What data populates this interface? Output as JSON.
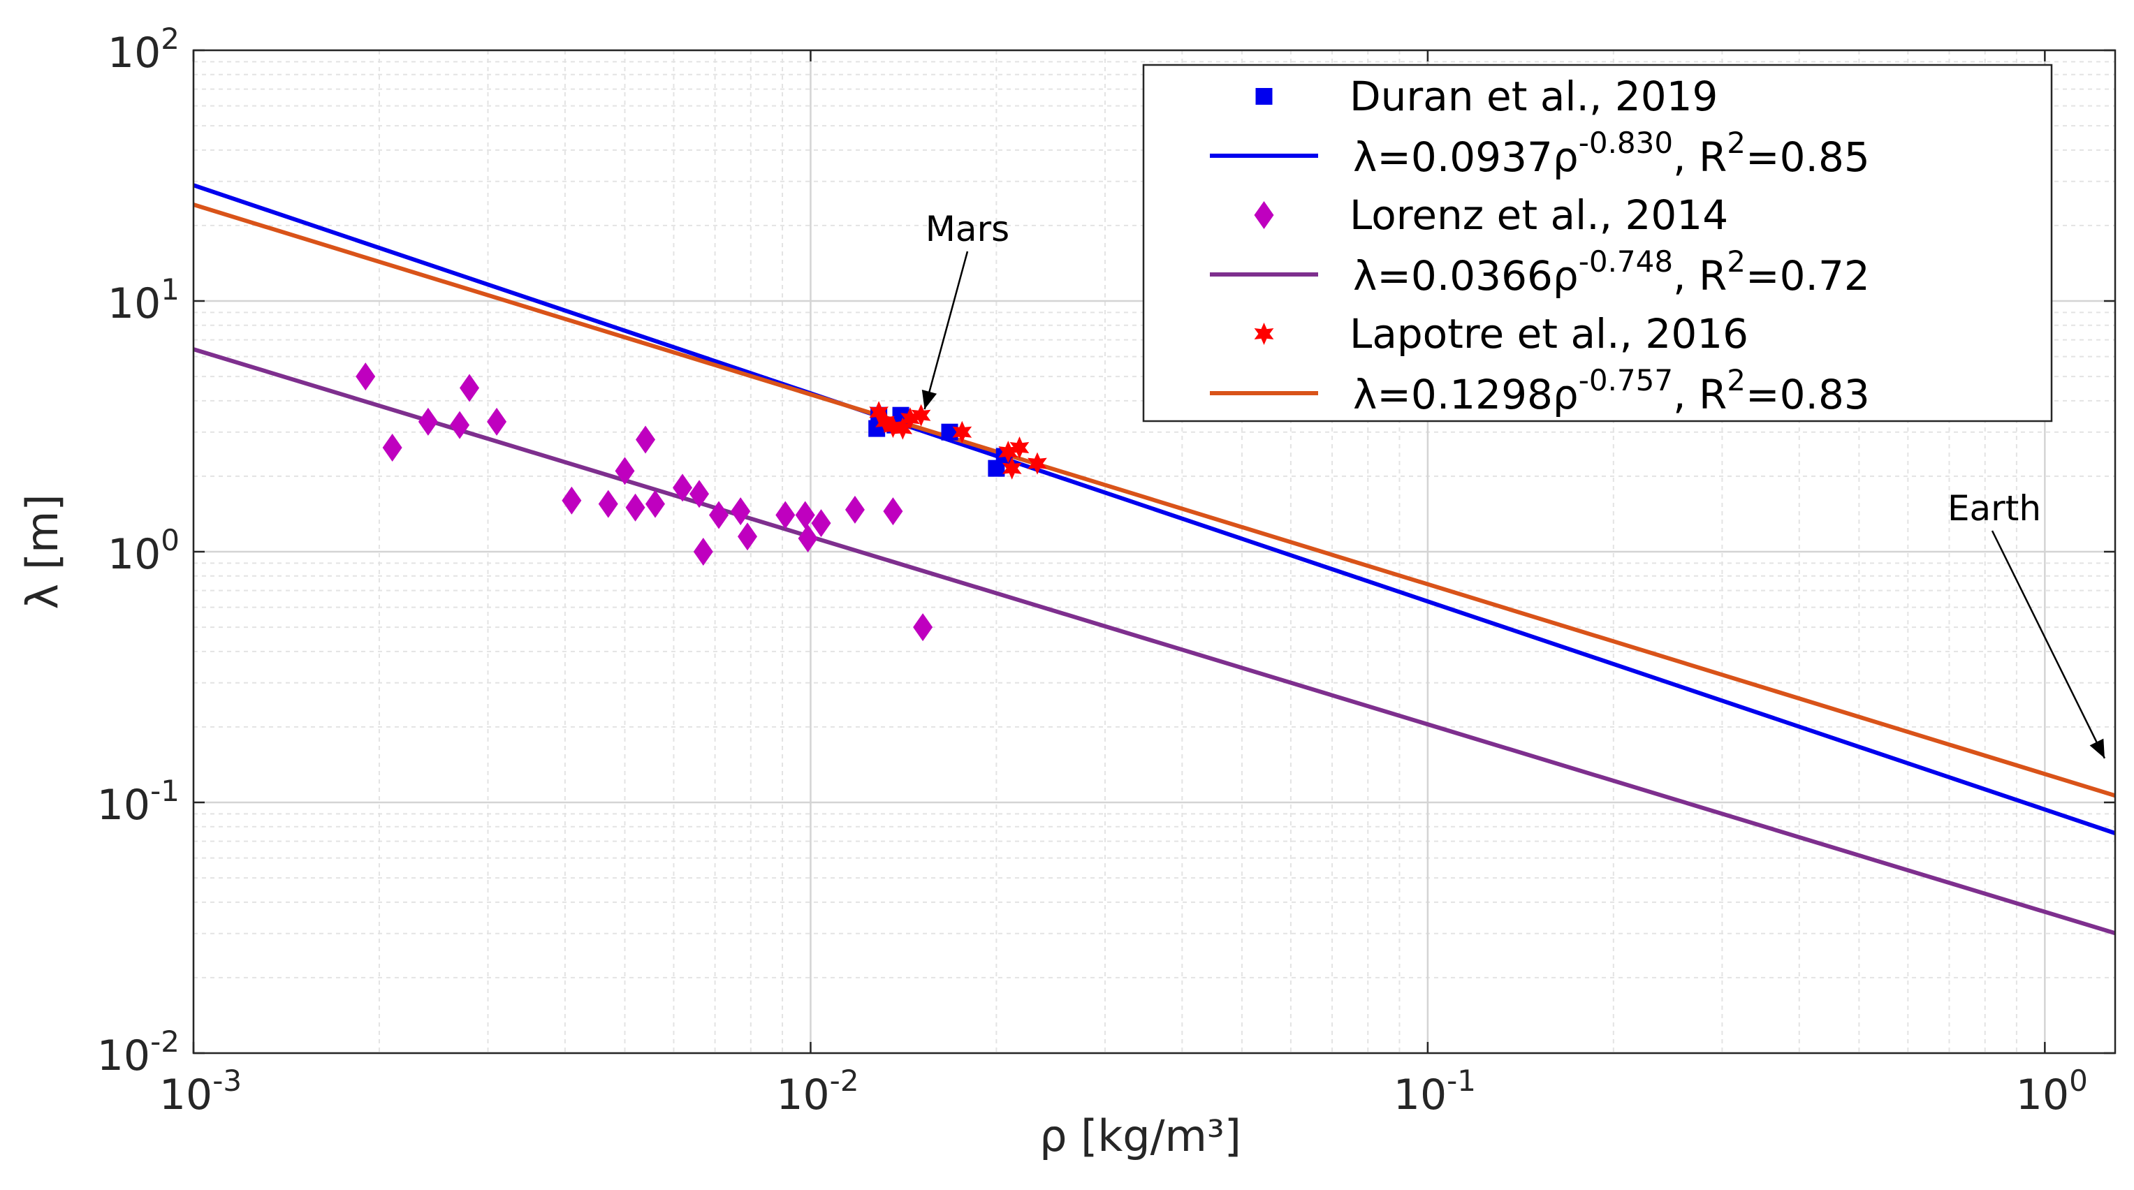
{
  "chart_data": {
    "type": "scatter",
    "xscale": "log",
    "yscale": "log",
    "xlim": [
      0.001,
      1.3
    ],
    "ylim": [
      0.01,
      100
    ],
    "grid": true,
    "xlabel": "ρ [kg/m³]",
    "ylabel": "λ [m]",
    "x_ticks": [
      {
        "base": "10",
        "exp": "-3",
        "value": 0.001
      },
      {
        "base": "10",
        "exp": "-2",
        "value": 0.01
      },
      {
        "base": "10",
        "exp": "-1",
        "value": 0.1
      },
      {
        "base": "10",
        "exp": "0",
        "value": 1
      }
    ],
    "y_ticks": [
      {
        "base": "10",
        "exp": "-2",
        "value": 0.01
      },
      {
        "base": "10",
        "exp": "-1",
        "value": 0.1
      },
      {
        "base": "10",
        "exp": "0",
        "value": 1
      },
      {
        "base": "10",
        "exp": "1",
        "value": 10
      },
      {
        "base": "10",
        "exp": "2",
        "value": 100
      }
    ],
    "legend_position": "top-right",
    "series": [
      {
        "name": "Duran et al., 2019",
        "kind": "scatter",
        "marker": "square",
        "color": "#0000ee",
        "points": [
          {
            "x": 0.0128,
            "y": 3.1
          },
          {
            "x": 0.0129,
            "y": 3.5
          },
          {
            "x": 0.0137,
            "y": 3.2
          },
          {
            "x": 0.014,
            "y": 3.5
          },
          {
            "x": 0.0168,
            "y": 3.0
          },
          {
            "x": 0.02,
            "y": 2.15
          },
          {
            "x": 0.0206,
            "y": 2.4
          }
        ]
      },
      {
        "name": "λ=0.0937ρ^-0.830, R²=0.85",
        "kind": "fit",
        "color": "#0000ee",
        "coef": 0.0937,
        "exponent": -0.83,
        "label_parts": {
          "pre": "λ=0.0937ρ",
          "exp": "-0.830",
          "mid": ", R",
          "sup2": "2",
          "post": "=0.85"
        }
      },
      {
        "name": "Lorenz et al., 2014",
        "kind": "scatter",
        "marker": "diamond",
        "color": "#bf00bf",
        "points": [
          {
            "x": 0.0019,
            "y": 5.0
          },
          {
            "x": 0.0021,
            "y": 2.6
          },
          {
            "x": 0.0024,
            "y": 3.3
          },
          {
            "x": 0.0027,
            "y": 3.2
          },
          {
            "x": 0.0028,
            "y": 4.5
          },
          {
            "x": 0.0031,
            "y": 3.3
          },
          {
            "x": 0.0041,
            "y": 1.6
          },
          {
            "x": 0.0047,
            "y": 1.55
          },
          {
            "x": 0.005,
            "y": 2.1
          },
          {
            "x": 0.0052,
            "y": 1.5
          },
          {
            "x": 0.0054,
            "y": 2.8
          },
          {
            "x": 0.0056,
            "y": 1.55
          },
          {
            "x": 0.0062,
            "y": 1.8
          },
          {
            "x": 0.0066,
            "y": 1.7
          },
          {
            "x": 0.0067,
            "y": 1.0
          },
          {
            "x": 0.0071,
            "y": 1.4
          },
          {
            "x": 0.0077,
            "y": 1.45
          },
          {
            "x": 0.0079,
            "y": 1.15
          },
          {
            "x": 0.0091,
            "y": 1.4
          },
          {
            "x": 0.0098,
            "y": 1.4
          },
          {
            "x": 0.0099,
            "y": 1.13
          },
          {
            "x": 0.0104,
            "y": 1.3
          },
          {
            "x": 0.0118,
            "y": 1.47
          },
          {
            "x": 0.0136,
            "y": 1.45
          },
          {
            "x": 0.0152,
            "y": 0.5
          }
        ]
      },
      {
        "name": "λ=0.0366ρ^-0.748, R²=0.72",
        "kind": "fit",
        "color": "#7e2f8e",
        "coef": 0.0366,
        "exponent": -0.748,
        "label_parts": {
          "pre": "λ=0.0366ρ",
          "exp": "-0.748",
          "mid": ", R",
          "sup2": "2",
          "post": "=0.72"
        }
      },
      {
        "name": "Lapotre et al., 2016",
        "kind": "scatter",
        "marker": "star",
        "color": "#ff0000",
        "points": [
          {
            "x": 0.0129,
            "y": 3.6
          },
          {
            "x": 0.0132,
            "y": 3.3
          },
          {
            "x": 0.0136,
            "y": 3.15
          },
          {
            "x": 0.0141,
            "y": 3.1
          },
          {
            "x": 0.0145,
            "y": 3.4
          },
          {
            "x": 0.0151,
            "y": 3.5
          },
          {
            "x": 0.0176,
            "y": 3.0
          },
          {
            "x": 0.0209,
            "y": 2.5
          },
          {
            "x": 0.0212,
            "y": 2.15
          },
          {
            "x": 0.0218,
            "y": 2.6
          },
          {
            "x": 0.0233,
            "y": 2.25
          }
        ]
      },
      {
        "name": "λ=0.1298ρ^-0.757, R²=0.83",
        "kind": "fit",
        "color": "#d95319",
        "coef": 0.1298,
        "exponent": -0.757,
        "label_parts": {
          "pre": "λ=0.1298ρ",
          "exp": "-0.757",
          "mid": ", R",
          "sup2": "2",
          "post": "=0.83"
        }
      }
    ],
    "annotations": [
      {
        "text": "Mars",
        "arrow_to": {
          "x": 0.0153,
          "y": 3.7
        }
      },
      {
        "text": "Earth",
        "arrow_to": {
          "x": 1.25,
          "y": 0.15
        }
      }
    ]
  }
}
